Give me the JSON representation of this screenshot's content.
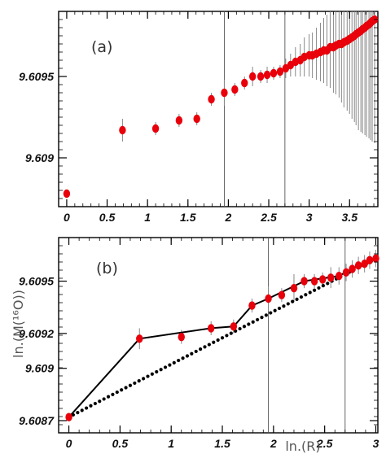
{
  "figure": {
    "ylabel": "ln.(M(¹⁶O))",
    "xlabel": "ln.(R)"
  },
  "chart_data": [
    {
      "type": "scatter",
      "panel_label": "(a)",
      "xlim": [
        -0.1,
        3.85
      ],
      "ylim": [
        9.6087,
        9.6099
      ],
      "xticks": [
        "0",
        "0.5",
        "1",
        "1.5",
        "2",
        "2.5",
        "3",
        "3.5"
      ],
      "yticks": [
        "9.609",
        "9.6095"
      ],
      "vlines": [
        1.95,
        2.7
      ],
      "marker_color": "#e8000b",
      "series": [
        {
          "x": [
            0,
            0.69,
            1.1,
            1.39,
            1.61,
            1.79,
            1.95,
            2.08,
            2.2,
            2.3,
            2.4,
            2.48,
            2.56,
            2.64,
            2.71,
            2.77,
            2.83,
            2.89,
            2.94,
            3.0,
            3.04,
            3.09,
            3.14,
            3.18,
            3.22,
            3.26,
            3.3,
            3.33,
            3.37,
            3.4,
            3.43,
            3.47,
            3.5,
            3.53,
            3.56,
            3.58,
            3.61,
            3.64,
            3.66,
            3.69,
            3.71,
            3.74,
            3.76,
            3.78,
            3.81
          ],
          "y": [
            9.60878,
            9.60917,
            9.60918,
            9.60923,
            9.60924,
            9.60936,
            9.6094,
            9.60942,
            9.60946,
            9.6095,
            9.6095,
            9.60951,
            9.60952,
            9.60953,
            9.60955,
            9.60957,
            9.60959,
            9.6096,
            9.60962,
            9.60963,
            9.60963,
            9.60964,
            9.60965,
            9.60966,
            9.60966,
            9.60968,
            9.60968,
            9.60969,
            9.6097,
            9.6097,
            9.60971,
            9.60972,
            9.60973,
            9.60974,
            9.60975,
            9.60976,
            9.60977,
            9.60978,
            9.60979,
            9.6098,
            9.60981,
            9.60982,
            9.60983,
            9.60984,
            9.60985
          ],
          "err": [
            0,
            7e-05,
            4e-05,
            4e-05,
            4e-05,
            4e-05,
            8e-05,
            4e-05,
            4e-05,
            6e-05,
            4e-05,
            5e-05,
            4e-05,
            4e-05,
            6e-05,
            7e-05,
            9e-05,
            0.0001,
            0.00012,
            0.00013,
            0.00014,
            0.00016,
            0.00018,
            0.0002,
            0.00022,
            0.00025,
            0.00028,
            0.0003,
            0.00033,
            0.00036,
            0.0004,
            0.00043,
            0.00046,
            0.0005,
            0.00053,
            0.00056,
            0.0006,
            0.00062,
            0.00064,
            0.00066,
            0.00068,
            0.0007,
            0.00072,
            0.00074,
            0.00076
          ]
        }
      ]
    },
    {
      "type": "scatter",
      "panel_label": "(b)",
      "xlim": [
        -0.1,
        3.02
      ],
      "ylim": [
        9.60863,
        9.60975
      ],
      "xticks": [
        "0",
        "0.5",
        "1",
        "1.5",
        "2",
        "2.5",
        "3"
      ],
      "yticks": [
        "9.6087",
        "9.609",
        "9.6092",
        "9.6095"
      ],
      "vlines": [
        1.95,
        2.7
      ],
      "marker_color": "#e8000b",
      "series": [
        {
          "x": [
            0,
            0.69,
            1.1,
            1.39,
            1.61,
            1.79,
            1.95,
            2.08,
            2.2,
            2.3,
            2.4,
            2.48,
            2.56,
            2.64,
            2.71,
            2.77,
            2.83,
            2.89,
            2.94,
            3.0
          ],
          "y": [
            9.60872,
            9.60917,
            9.60918,
            9.60923,
            9.60924,
            9.60936,
            9.6094,
            9.60942,
            9.60946,
            9.6095,
            9.6095,
            9.60951,
            9.60952,
            9.60953,
            9.60955,
            9.60957,
            9.60959,
            9.6096,
            9.60962,
            9.60963
          ],
          "err": [
            0,
            6e-05,
            4e-05,
            4e-05,
            4e-05,
            4e-05,
            7e-05,
            4e-05,
            8e-05,
            4e-05,
            4e-05,
            4e-05,
            6e-05,
            5e-05,
            5e-05,
            5e-05,
            5e-05,
            5e-05,
            5e-05,
            5e-05
          ]
        }
      ],
      "envelope_line": {
        "color": "#000000",
        "x": [
          0,
          0.69,
          1.39,
          1.61,
          1.79,
          1.95,
          2.3,
          2.64,
          2.83,
          3.0
        ],
        "y": [
          9.60872,
          9.60917,
          9.60923,
          9.60924,
          9.60936,
          9.6094,
          9.6095,
          9.60953,
          9.60959,
          9.60963
        ]
      },
      "fit_line": {
        "color": "#000000",
        "x": [
          0,
          3.0
        ],
        "y": [
          9.60872,
          9.60963
        ]
      }
    }
  ]
}
